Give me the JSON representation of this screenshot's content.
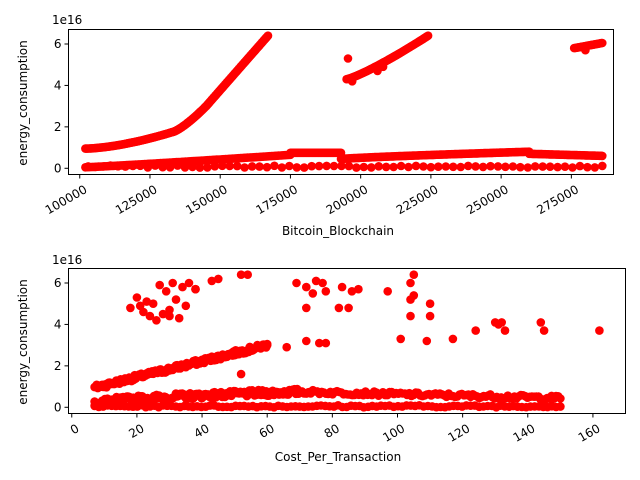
{
  "chart_data": [
    {
      "type": "scatter",
      "xlabel": "Bitcoin_Blockchain",
      "ylabel": "energy_consumption",
      "y_offset_text": "1e16",
      "xlim": [
        96000,
        290000
      ],
      "ylim": [
        -0.3,
        6.7
      ],
      "y_scale_unit": "1e16",
      "x_ticks": [
        100000,
        125000,
        150000,
        175000,
        200000,
        225000,
        250000,
        275000
      ],
      "x_tick_labels": [
        "100000",
        "125000",
        "150000",
        "175000",
        "200000",
        "225000",
        "250000",
        "275000"
      ],
      "y_ticks": [
        0,
        2,
        4,
        6
      ],
      "y_tick_labels": [
        "0",
        "2",
        "4",
        "6"
      ],
      "marker_color": "#ff0000",
      "grid": false,
      "segments": [
        {
          "x_start": 102000,
          "x_end": 133000,
          "y_start": 0.95,
          "y_end": 1.75,
          "curve": 1.6,
          "n": 90
        },
        {
          "x_start": 133000,
          "x_end": 145000,
          "y_start": 1.75,
          "y_end": 3.0,
          "curve": 1.3,
          "n": 60
        },
        {
          "x_start": 145000,
          "x_end": 167000,
          "y_start": 3.0,
          "y_end": 6.4,
          "curve": 1.0,
          "n": 110
        },
        {
          "x_start": 195000,
          "x_end": 224000,
          "y_start": 4.3,
          "y_end": 6.4,
          "curve": 1.2,
          "n": 100
        },
        {
          "x_start": 276000,
          "x_end": 286000,
          "y_start": 5.8,
          "y_end": 6.05,
          "curve": 1.0,
          "n": 30
        },
        {
          "x_start": 102000,
          "x_end": 175000,
          "y_start": 0.05,
          "y_end": 0.65,
          "curve": 1.1,
          "n": 140
        },
        {
          "x_start": 175000,
          "x_end": 193000,
          "y_start": 0.75,
          "y_end": 0.75,
          "curve": 1.0,
          "n": 60
        },
        {
          "x_start": 193000,
          "x_end": 260000,
          "y_start": 0.45,
          "y_end": 0.8,
          "curve": 0.8,
          "n": 180
        },
        {
          "x_start": 260000,
          "x_end": 286000,
          "y_start": 0.7,
          "y_end": 0.6,
          "curve": 1.0,
          "n": 70
        },
        {
          "x_start": 103000,
          "x_end": 286000,
          "y_start": 0.08,
          "y_end": 0.08,
          "curve": 1.0,
          "n": 70,
          "jitter": 0.1
        }
      ],
      "points": [
        {
          "x": 195500,
          "y": 5.3
        },
        {
          "x": 197000,
          "y": 4.2
        },
        {
          "x": 206000,
          "y": 4.7
        },
        {
          "x": 208000,
          "y": 4.9
        },
        {
          "x": 280000,
          "y": 5.7
        }
      ]
    },
    {
      "type": "scatter",
      "xlabel": "Cost_Per_Transaction",
      "ylabel": "energy_consumption",
      "y_offset_text": "1e16",
      "xlim": [
        -1,
        170
      ],
      "ylim": [
        -0.3,
        6.7
      ],
      "y_scale_unit": "1e16",
      "x_ticks": [
        0,
        20,
        40,
        60,
        80,
        100,
        120,
        140,
        160
      ],
      "x_tick_labels": [
        "0",
        "20",
        "40",
        "60",
        "80",
        "100",
        "120",
        "140",
        "160"
      ],
      "y_ticks": [
        0,
        2,
        4,
        6
      ],
      "y_tick_labels": [
        "0",
        "2",
        "4",
        "6"
      ],
      "marker_color": "#ff0000",
      "grid": false,
      "segments": [
        {
          "x_start": 7,
          "x_end": 60,
          "y_start": 0.95,
          "y_end": 3.0,
          "curve": 1.0,
          "n": 160,
          "jitter": 0.25
        },
        {
          "x_start": 7,
          "x_end": 70,
          "y_start": 0.2,
          "y_end": 0.75,
          "curve": 0.6,
          "n": 160,
          "jitter": 0.3
        },
        {
          "x_start": 70,
          "x_end": 150,
          "y_start": 0.75,
          "y_end": 0.45,
          "curve": 1.0,
          "n": 120,
          "jitter": 0.2
        },
        {
          "x_start": 7,
          "x_end": 150,
          "y_start": 0.05,
          "y_end": 0.05,
          "curve": 1.0,
          "n": 110,
          "jitter": 0.1
        }
      ],
      "points": [
        {
          "x": 18,
          "y": 4.8
        },
        {
          "x": 20,
          "y": 5.3
        },
        {
          "x": 22,
          "y": 4.6
        },
        {
          "x": 24,
          "y": 4.4
        },
        {
          "x": 25,
          "y": 5.0
        },
        {
          "x": 26,
          "y": 4.2
        },
        {
          "x": 27,
          "y": 5.9
        },
        {
          "x": 28,
          "y": 4.5
        },
        {
          "x": 29,
          "y": 5.6
        },
        {
          "x": 30,
          "y": 4.7
        },
        {
          "x": 31,
          "y": 6.0
        },
        {
          "x": 32,
          "y": 5.2
        },
        {
          "x": 33,
          "y": 4.3
        },
        {
          "x": 34,
          "y": 5.8
        },
        {
          "x": 35,
          "y": 4.9
        },
        {
          "x": 36,
          "y": 6.0
        },
        {
          "x": 38,
          "y": 5.7
        },
        {
          "x": 43,
          "y": 6.1
        },
        {
          "x": 45,
          "y": 6.2
        },
        {
          "x": 52,
          "y": 6.4
        },
        {
          "x": 54,
          "y": 6.4
        },
        {
          "x": 21,
          "y": 4.9
        },
        {
          "x": 23,
          "y": 5.1
        },
        {
          "x": 30,
          "y": 4.4
        },
        {
          "x": 69,
          "y": 6.0
        },
        {
          "x": 72,
          "y": 4.8
        },
        {
          "x": 72,
          "y": 5.8
        },
        {
          "x": 74,
          "y": 5.5
        },
        {
          "x": 75,
          "y": 6.1
        },
        {
          "x": 76,
          "y": 3.1
        },
        {
          "x": 77,
          "y": 6.0
        },
        {
          "x": 78,
          "y": 5.6
        },
        {
          "x": 78,
          "y": 3.1
        },
        {
          "x": 82,
          "y": 4.8
        },
        {
          "x": 83,
          "y": 5.8
        },
        {
          "x": 85,
          "y": 4.8
        },
        {
          "x": 86,
          "y": 5.6
        },
        {
          "x": 88,
          "y": 5.7
        },
        {
          "x": 97,
          "y": 5.6
        },
        {
          "x": 101,
          "y": 3.3
        },
        {
          "x": 104,
          "y": 5.2
        },
        {
          "x": 104,
          "y": 6.0
        },
        {
          "x": 105,
          "y": 6.4
        },
        {
          "x": 105,
          "y": 5.4
        },
        {
          "x": 104,
          "y": 4.4
        },
        {
          "x": 110,
          "y": 5.0
        },
        {
          "x": 110,
          "y": 4.4
        },
        {
          "x": 109,
          "y": 3.2
        },
        {
          "x": 117,
          "y": 3.3
        },
        {
          "x": 124,
          "y": 3.7
        },
        {
          "x": 130,
          "y": 4.1
        },
        {
          "x": 131,
          "y": 4.0
        },
        {
          "x": 132,
          "y": 4.1
        },
        {
          "x": 133,
          "y": 3.7
        },
        {
          "x": 144,
          "y": 4.1
        },
        {
          "x": 145,
          "y": 3.7
        },
        {
          "x": 162,
          "y": 3.7
        },
        {
          "x": 72,
          "y": 3.2
        },
        {
          "x": 60,
          "y": 3.0
        },
        {
          "x": 66,
          "y": 2.9
        },
        {
          "x": 52,
          "y": 1.6
        },
        {
          "x": 38,
          "y": 5.7
        }
      ]
    }
  ]
}
